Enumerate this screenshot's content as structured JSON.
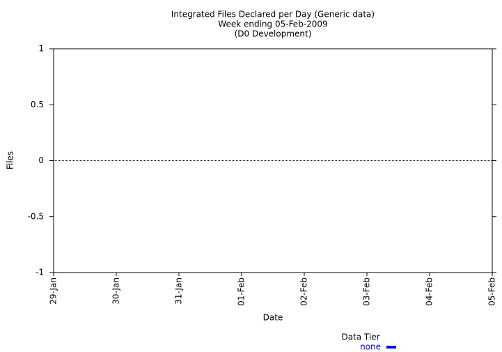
{
  "chart_data": {
    "type": "line",
    "title": "Integrated Files Declared per Day (Generic data)",
    "subtitle": "Week ending 05-Feb-2009",
    "subtitle2": "(D0 Development)",
    "x_label": "Date",
    "y_label": "Files",
    "categories": [
      "29-Jan",
      "30-Jan",
      "31-Jan",
      "01-Feb",
      "02-Feb",
      "03-Feb",
      "04-Feb",
      "05-Feb"
    ],
    "legend_title": "Data Tier",
    "series": [
      {
        "name": "none",
        "color": "#0000ff",
        "values": [
          null,
          null,
          null,
          null,
          null,
          null,
          null,
          null
        ]
      }
    ],
    "ylim": [
      -1,
      1
    ],
    "yticks": [
      -1,
      -0.5,
      0,
      0.5,
      1
    ]
  }
}
